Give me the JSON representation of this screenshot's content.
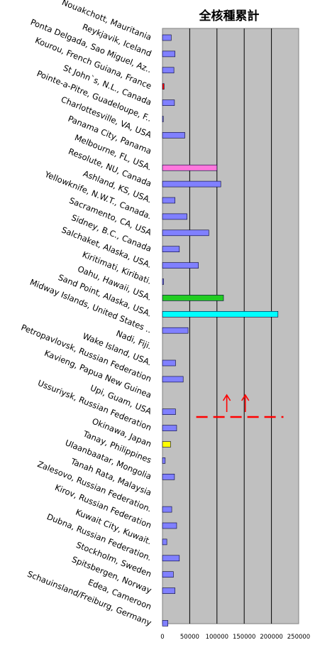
{
  "chart_data": {
    "type": "bar",
    "orientation": "horizontal",
    "title": "全核種累計",
    "xlabel": "",
    "ylabel": "",
    "xlim": [
      0,
      250000
    ],
    "x_ticks": [
      "0",
      "50000",
      "100000",
      "150000",
      "200000",
      "250000"
    ],
    "grid": true,
    "plot_background": "#c0c0c0",
    "default_bar_color": "#8080ff",
    "categories": [
      "Nouakchott, Mauritania",
      "Reykjavik, Iceland",
      "Ponta Delgada, Sao Miguel, Az..",
      "Kourou, French Guiana, France",
      "St John`s, N.L., Canada",
      "Pointe-a-Pitre, Guadeloupe, F..",
      "Charlottesville, VA, USA",
      "Panama City, Panama",
      "Melbourne, FL, USA.",
      "Resolute, NU, Canada",
      "Ashland, KS, USA.",
      "Yellowknife, N.W.T., Canada.",
      "Sacramento, CA, USA",
      "Sidney, B.C., Canada",
      "Salchaket, Alaska, USA.",
      "Kiritimati, Kiribati.",
      "Oahu, Hawaii, USA.",
      "Sand Point, Alaska, USA.",
      "Midway Islands, United States ..",
      "Nadi, Fiji.",
      "Wake Island, USA.",
      "Petropavlovsk, Russian Federation",
      "Kavieng, Papua New Guinea",
      "Upi, Guam, USA",
      "Ussuriysk, Russian Federation",
      "Okinawa, Japan",
      "Tanay, Philippines",
      "Ulaanbaatar, Mongolia",
      "Tanah Rata, Malaysia",
      "Zalesovo, Russian Federation.",
      "Kirov, Russian Federation",
      "Kuwait City, Kuwait.",
      "Dubna, Russian Federation.",
      "Stockholm, Sweden",
      "Spitsbergen, Norway",
      "Edea, Cameroon",
      "Schauinsland/Freiburg, Germany"
    ],
    "values": [
      16000,
      23000,
      21000,
      3000,
      22000,
      1500,
      41000,
      0,
      100000,
      107000,
      23000,
      45000,
      85000,
      31000,
      66000,
      2000,
      112000,
      212000,
      47000,
      0,
      24000,
      38000,
      0,
      24000,
      26000,
      15000,
      5000,
      22000,
      0,
      17000,
      26000,
      8000,
      31000,
      20000,
      23000,
      0,
      10000
    ],
    "highlighted_bars": [
      {
        "index": 3,
        "color": "#ff0000"
      },
      {
        "index": 8,
        "color": "#ff77dd"
      },
      {
        "index": 16,
        "color": "#22cc22"
      },
      {
        "index": 17,
        "color": "#00ffff"
      },
      {
        "index": 25,
        "color": "#ffff00"
      }
    ],
    "annotation": {
      "description": "dashed red line with two upward arrows",
      "color": "#ff0000",
      "x_range": [
        62000,
        222000
      ],
      "arrows_at_x": [
        118000,
        152000
      ]
    }
  }
}
